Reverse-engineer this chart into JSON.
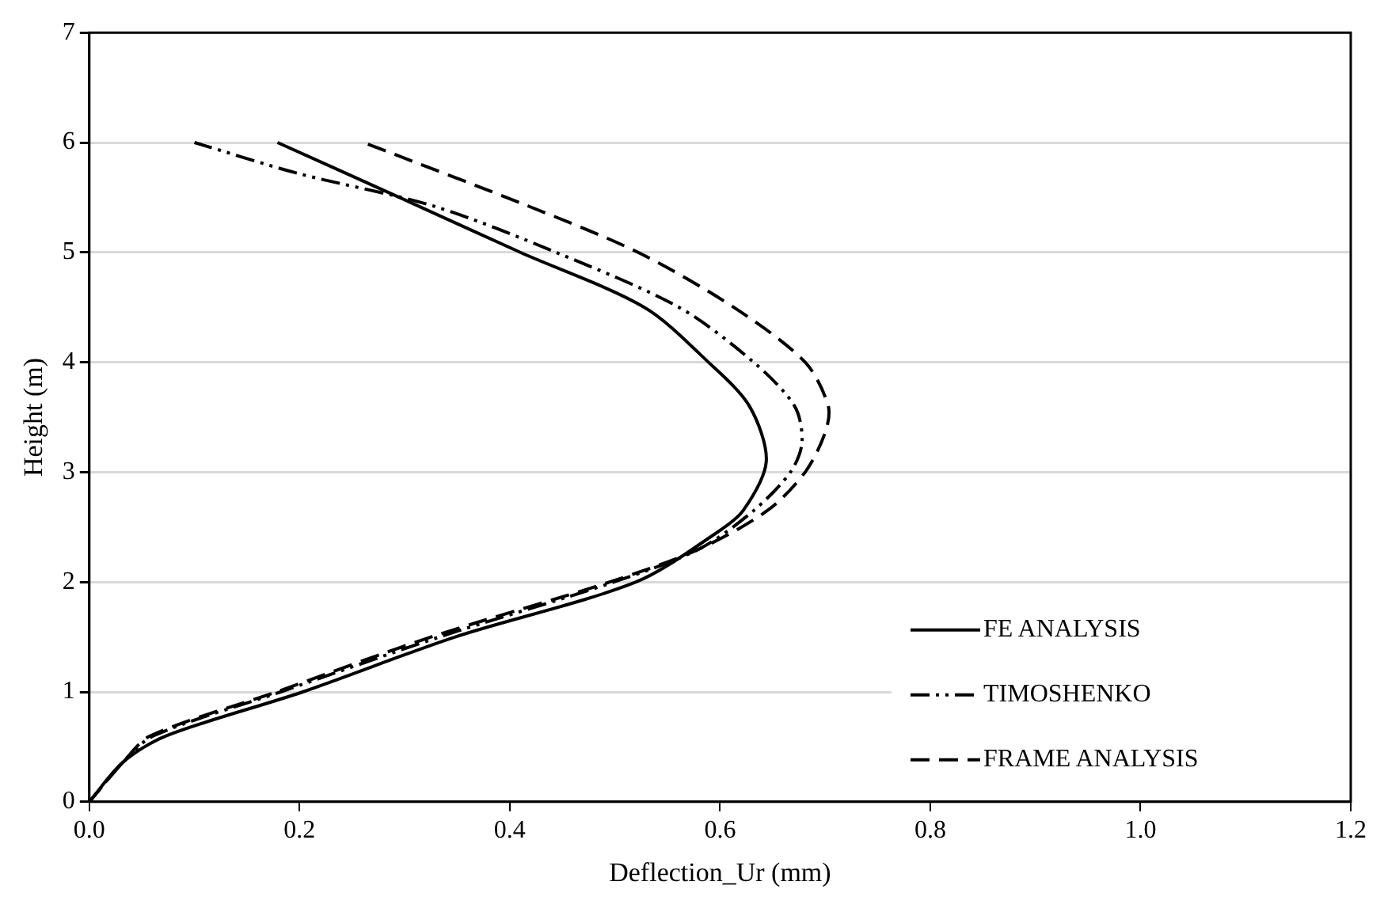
{
  "chart_data": {
    "type": "line",
    "xlabel": "Deflection_Ur (mm)",
    "ylabel": "Height (m)",
    "xlim": [
      0,
      1.2
    ],
    "xticks": [
      {
        "value": 0,
        "label": "0.0"
      },
      {
        "value": 0.2,
        "label": "0.2"
      },
      {
        "value": 0.4,
        "label": "0.4"
      },
      {
        "value": 0.6,
        "label": "0.6"
      },
      {
        "value": 0.8,
        "label": "0.8"
      },
      {
        "value": 1,
        "label": "1.0"
      },
      {
        "value": 1.2,
        "label": "1.2"
      }
    ],
    "ylim": [
      0,
      7
    ],
    "yticks": [
      0,
      1,
      2,
      3,
      4,
      5,
      6,
      7
    ],
    "grid": "y",
    "legend": "bottom right",
    "marker": "none",
    "series": [
      {
        "name": "FE ANALYSIS",
        "color": "#000000",
        "line_style": "solid",
        "x": [
          0,
          0.032,
          0.073,
          0.203,
          0.348,
          0.52,
          0.597,
          0.622,
          0.644,
          0.628,
          0.589,
          0.528,
          0.41,
          0.295,
          0.179
        ],
        "values": [
          0,
          0.36,
          0.6,
          1,
          1.5,
          2,
          2.45,
          2.65,
          3.1,
          3.6,
          4,
          4.5,
          5,
          5.5,
          6
        ]
      },
      {
        "name": "TIMOSHENKO",
        "color": "#000000",
        "line_style": "dashdot",
        "x": [
          0,
          0.032,
          0.061,
          0.182,
          0.333,
          0.499,
          0.58,
          0.632,
          0.667,
          0.678,
          0.671,
          0.632,
          0.561,
          0.444,
          0.328,
          0.198,
          0.1
        ],
        "values": [
          0,
          0.36,
          0.6,
          1,
          1.5,
          2,
          2.3,
          2.65,
          3,
          3.27,
          3.6,
          4,
          4.5,
          5,
          5.42,
          5.72,
          6
        ]
      },
      {
        "name": "FRAME ANALYSIS",
        "color": "#000000",
        "line_style": "dashed",
        "x": [
          0,
          0.032,
          0.058,
          0.178,
          0.325,
          0.495,
          0.58,
          0.645,
          0.681,
          0.7,
          0.703,
          0.681,
          0.613,
          0.522,
          0.418,
          0.261
        ],
        "values": [
          0,
          0.36,
          0.6,
          1,
          1.5,
          2,
          2.3,
          2.65,
          3,
          3.36,
          3.6,
          4,
          4.5,
          5,
          5.42,
          6
        ]
      }
    ]
  }
}
